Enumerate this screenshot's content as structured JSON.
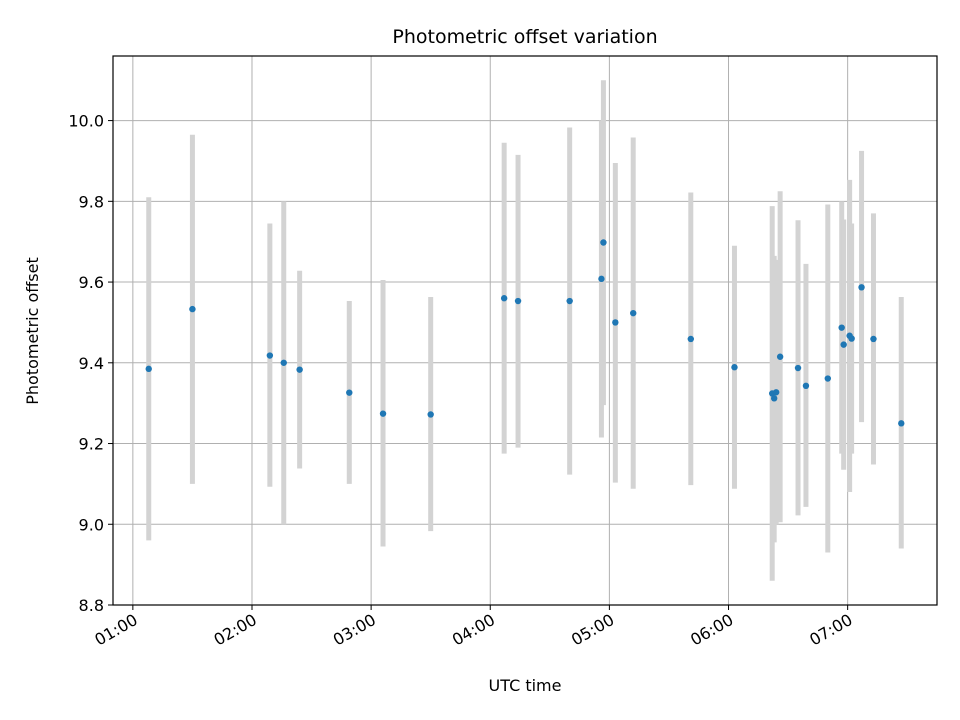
{
  "chart_data": {
    "type": "scatter",
    "title": "Photometric offset variation",
    "xlabel": "UTC time",
    "ylabel": "Photometric offset",
    "grid": true,
    "xlim": [
      "00:50",
      "07:45"
    ],
    "ylim": [
      8.8,
      10.16
    ],
    "xticks": [
      "01:00",
      "02:00",
      "03:00",
      "04:00",
      "05:00",
      "06:00",
      "07:00"
    ],
    "yticks": [
      "8.8",
      "9.0",
      "9.2",
      "9.4",
      "9.6",
      "9.8",
      "10.0"
    ],
    "marker_color": "#1f77b4",
    "errorbar_color": "#d3d3d3",
    "points": [
      {
        "t": "01:08",
        "y": 9.385,
        "lo": 8.96,
        "hi": 9.81
      },
      {
        "t": "01:30",
        "y": 9.533,
        "lo": 9.1,
        "hi": 9.965
      },
      {
        "t": "02:09",
        "y": 9.418,
        "lo": 9.093,
        "hi": 9.745
      },
      {
        "t": "02:16",
        "y": 9.4,
        "lo": 9.0,
        "hi": 9.8
      },
      {
        "t": "02:24",
        "y": 9.383,
        "lo": 9.138,
        "hi": 9.628
      },
      {
        "t": "02:49",
        "y": 9.326,
        "lo": 9.1,
        "hi": 9.553
      },
      {
        "t": "03:06",
        "y": 9.274,
        "lo": 8.945,
        "hi": 9.605
      },
      {
        "t": "03:30",
        "y": 9.272,
        "lo": 8.983,
        "hi": 9.563
      },
      {
        "t": "04:07",
        "y": 9.56,
        "lo": 9.175,
        "hi": 9.945
      },
      {
        "t": "04:14",
        "y": 9.553,
        "lo": 9.19,
        "hi": 9.915
      },
      {
        "t": "04:40",
        "y": 9.553,
        "lo": 9.123,
        "hi": 9.983
      },
      {
        "t": "04:56",
        "y": 9.608,
        "lo": 9.215,
        "hi": 10.0
      },
      {
        "t": "04:57",
        "y": 9.698,
        "lo": 9.295,
        "hi": 10.1
      },
      {
        "t": "05:03",
        "y": 9.5,
        "lo": 9.103,
        "hi": 9.895
      },
      {
        "t": "05:12",
        "y": 9.523,
        "lo": 9.088,
        "hi": 9.958
      },
      {
        "t": "05:41",
        "y": 9.459,
        "lo": 9.097,
        "hi": 9.822
      },
      {
        "t": "06:03",
        "y": 9.389,
        "lo": 9.088,
        "hi": 9.69
      },
      {
        "t": "06:22",
        "y": 9.324,
        "lo": 8.86,
        "hi": 9.788
      },
      {
        "t": "06:23",
        "y": 9.312,
        "lo": 8.955,
        "hi": 9.665
      },
      {
        "t": "06:24",
        "y": 9.327,
        "lo": 9.0,
        "hi": 9.655
      },
      {
        "t": "06:26",
        "y": 9.415,
        "lo": 9.005,
        "hi": 9.825
      },
      {
        "t": "06:35",
        "y": 9.387,
        "lo": 9.022,
        "hi": 9.753
      },
      {
        "t": "06:39",
        "y": 9.343,
        "lo": 9.043,
        "hi": 9.645
      },
      {
        "t": "06:50",
        "y": 9.361,
        "lo": 8.93,
        "hi": 9.792
      },
      {
        "t": "06:57",
        "y": 9.487,
        "lo": 9.175,
        "hi": 9.8
      },
      {
        "t": "06:58",
        "y": 9.445,
        "lo": 9.135,
        "hi": 9.755
      },
      {
        "t": "07:01",
        "y": 9.467,
        "lo": 9.08,
        "hi": 9.853
      },
      {
        "t": "07:02",
        "y": 9.46,
        "lo": 9.175,
        "hi": 9.745
      },
      {
        "t": "07:07",
        "y": 9.587,
        "lo": 9.253,
        "hi": 9.925
      },
      {
        "t": "07:13",
        "y": 9.459,
        "lo": 9.148,
        "hi": 9.77
      },
      {
        "t": "07:27",
        "y": 9.25,
        "lo": 8.94,
        "hi": 9.563
      }
    ]
  }
}
